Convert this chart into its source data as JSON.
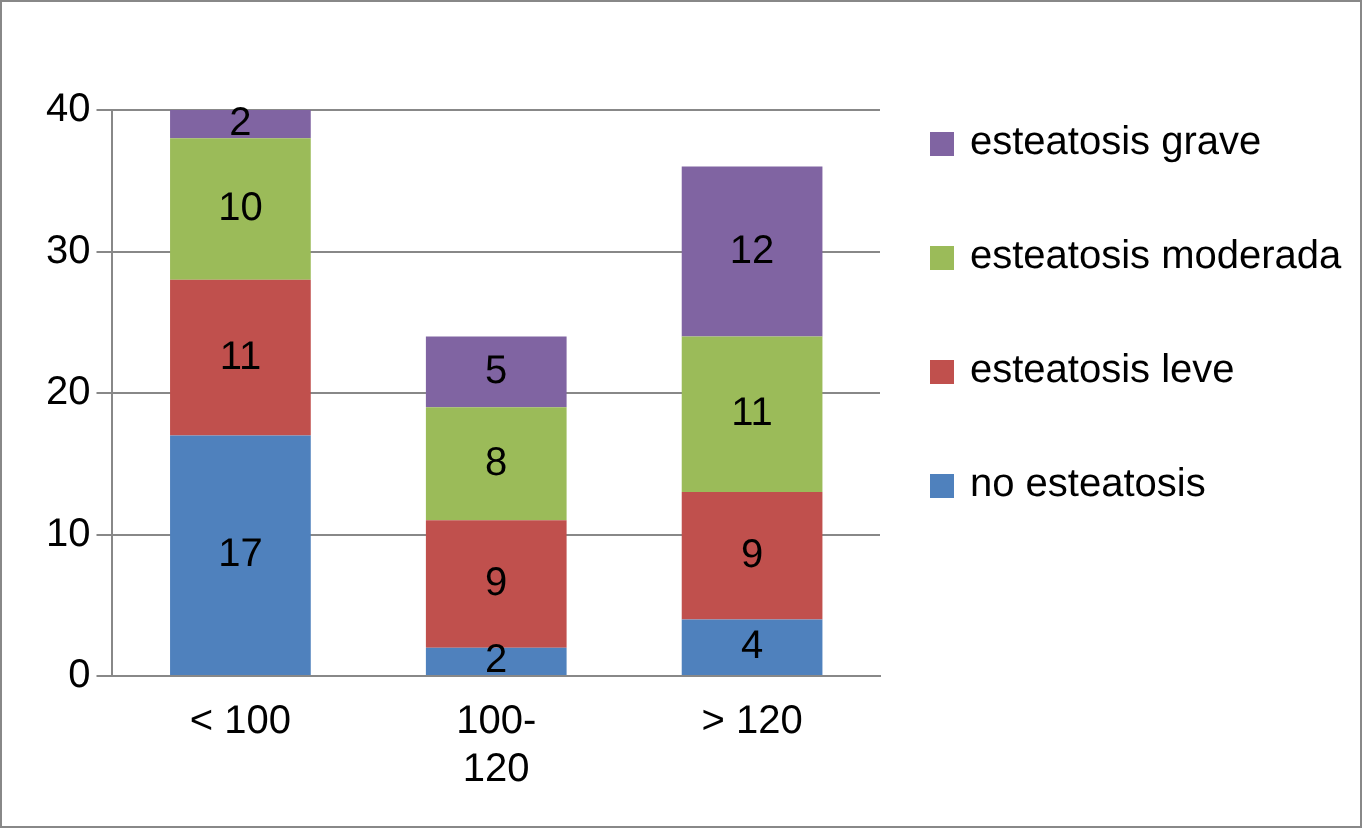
{
  "chart_data": {
    "type": "bar",
    "stacked": true,
    "categories": [
      "< 100",
      "100-120",
      "> 120"
    ],
    "series": [
      {
        "name": "no esteatosis",
        "color": "#4f81bd",
        "values": [
          17,
          2,
          4
        ]
      },
      {
        "name": "esteatosis leve",
        "color": "#c0504d",
        "values": [
          11,
          9,
          9
        ]
      },
      {
        "name": "esteatosis moderada",
        "color": "#9bbb59",
        "values": [
          10,
          8,
          11
        ]
      },
      {
        "name": "esteatosis grave",
        "color": "#8064a2",
        "values": [
          2,
          5,
          12
        ]
      }
    ],
    "ylim": [
      0,
      40
    ],
    "yticks": [
      0,
      10,
      20,
      30,
      40
    ],
    "grid": "y",
    "legend": "right",
    "data_labels": true
  }
}
